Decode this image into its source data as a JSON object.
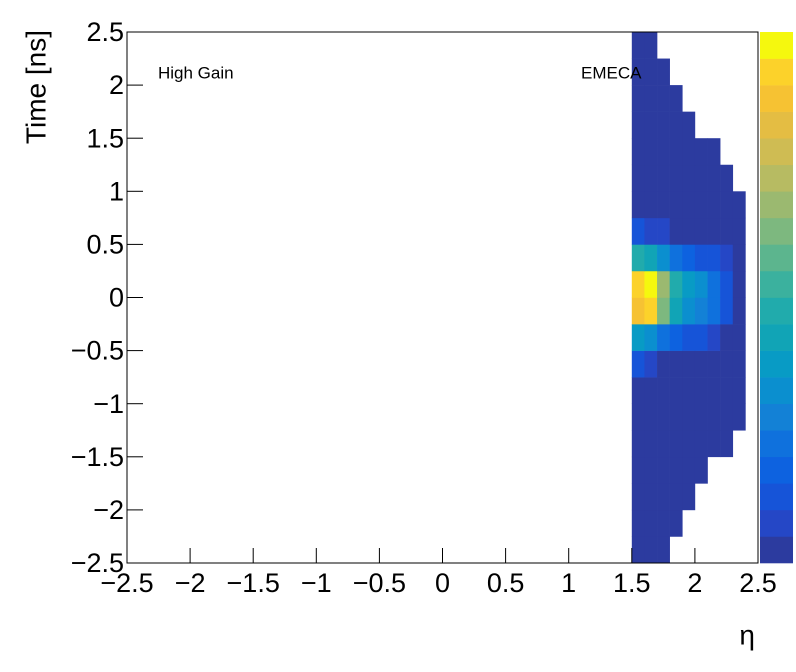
{
  "chart_data": {
    "type": "heatmap",
    "x_label": "η",
    "y_label": "Time [ns]",
    "annotations": [
      "High Gain",
      "EMECA"
    ],
    "x": [
      1.5,
      1.6,
      1.7,
      1.8,
      1.9,
      2.0,
      2.1,
      2.2,
      2.3,
      2.4,
      2.5
    ],
    "y": [
      -2.5,
      -2.25,
      -2.0,
      -1.75,
      -1.5,
      -1.25,
      -1.0,
      -0.75,
      -0.5,
      -0.25,
      0,
      0.25,
      0.5,
      0.75,
      1.0,
      1.25,
      1.5,
      1.75,
      2.0,
      2.25,
      2.5
    ],
    "z": [
      [
        0.02,
        0.02,
        0.02,
        null,
        null,
        null,
        null,
        null,
        null,
        null
      ],
      [
        0.02,
        0.02,
        0.02,
        0.02,
        null,
        null,
        null,
        null,
        null,
        null
      ],
      [
        0.02,
        0.02,
        0.02,
        0.02,
        0.02,
        null,
        null,
        null,
        null,
        null
      ],
      [
        0.02,
        0.02,
        0.02,
        0.02,
        0.02,
        0.02,
        null,
        null,
        null,
        null
      ],
      [
        0.02,
        0.02,
        0.02,
        0.02,
        0.02,
        0.02,
        0.02,
        0.02,
        null,
        null
      ],
      [
        0.02,
        0.02,
        0.02,
        0.02,
        0.02,
        0.02,
        0.02,
        0.02,
        0.02,
        null
      ],
      [
        0.03,
        0.03,
        0.03,
        0.03,
        0.03,
        0.03,
        0.03,
        0.03,
        0.02,
        null
      ],
      [
        0.1,
        0.05,
        0.04,
        0.03,
        0.03,
        0.03,
        0.03,
        0.02,
        0.02,
        null
      ],
      [
        0.35,
        0.3,
        0.2,
        0.15,
        0.12,
        0.1,
        0.08,
        0.04,
        0.02,
        null
      ],
      [
        0.85,
        0.9,
        0.6,
        0.4,
        0.3,
        0.25,
        0.2,
        0.1,
        0.02,
        null
      ],
      [
        0.9,
        1.0,
        0.65,
        0.45,
        0.35,
        0.3,
        0.22,
        0.12,
        0.02,
        null
      ],
      [
        0.45,
        0.4,
        0.3,
        0.2,
        0.15,
        0.12,
        0.1,
        0.05,
        0.02,
        null
      ],
      [
        0.1,
        0.08,
        0.05,
        0.04,
        0.04,
        0.03,
        0.03,
        0.02,
        0.02,
        null
      ],
      [
        0.02,
        0.02,
        0.02,
        0.02,
        0.02,
        0.02,
        0.02,
        0.02,
        0.02,
        null
      ],
      [
        0.02,
        0.02,
        0.02,
        0.02,
        0.02,
        0.02,
        0.02,
        0.02,
        null,
        null
      ],
      [
        0.02,
        0.02,
        0.02,
        0.02,
        0.02,
        0.02,
        0.02,
        null,
        null,
        null
      ],
      [
        0.02,
        0.02,
        0.02,
        0.02,
        0.02,
        null,
        null,
        null,
        null,
        null
      ],
      [
        0.02,
        0.02,
        0.02,
        0.02,
        null,
        null,
        null,
        null,
        null,
        null
      ],
      [
        0.02,
        0.02,
        0.02,
        null,
        null,
        null,
        null,
        null,
        null,
        null
      ],
      [
        0.02,
        0.02,
        null,
        null,
        null,
        null,
        null,
        null,
        null,
        null
      ]
    ],
    "zlim": [
      0,
      1
    ],
    "palette": [
      "#2c3b9f",
      "#2547c6",
      "#1654d8",
      "#0d62e0",
      "#0f71dd",
      "#1381d6",
      "#0b8fcf",
      "#089bc5",
      "#11a4b6",
      "#21abac",
      "#3bb19e",
      "#5cb58e",
      "#7db87f",
      "#9bb970",
      "#b7bb62",
      "#cfbc53",
      "#e4bd43",
      "#f6c233",
      "#fcd22a",
      "#f5f80e"
    ],
    "xlim": [
      -2.5,
      2.5
    ],
    "ylim": [
      -2.5,
      2.5
    ],
    "xticks": [
      {
        "value": -2.5,
        "label": "−2.5"
      },
      {
        "value": -2,
        "label": "−2"
      },
      {
        "value": -1.5,
        "label": "−1.5"
      },
      {
        "value": -1,
        "label": "−1"
      },
      {
        "value": -0.5,
        "label": "−0.5"
      },
      0,
      0.5,
      1,
      1.5,
      2,
      2.5
    ],
    "yticks": [
      {
        "value": -2.5,
        "label": "−2.5"
      },
      {
        "value": -2,
        "label": "−2"
      },
      {
        "value": -1.5,
        "label": "−1.5"
      },
      {
        "value": -1,
        "label": "−1"
      },
      {
        "value": -0.5,
        "label": "−0.5"
      },
      0,
      0.5,
      1,
      1.5,
      2,
      2.5
    ]
  }
}
